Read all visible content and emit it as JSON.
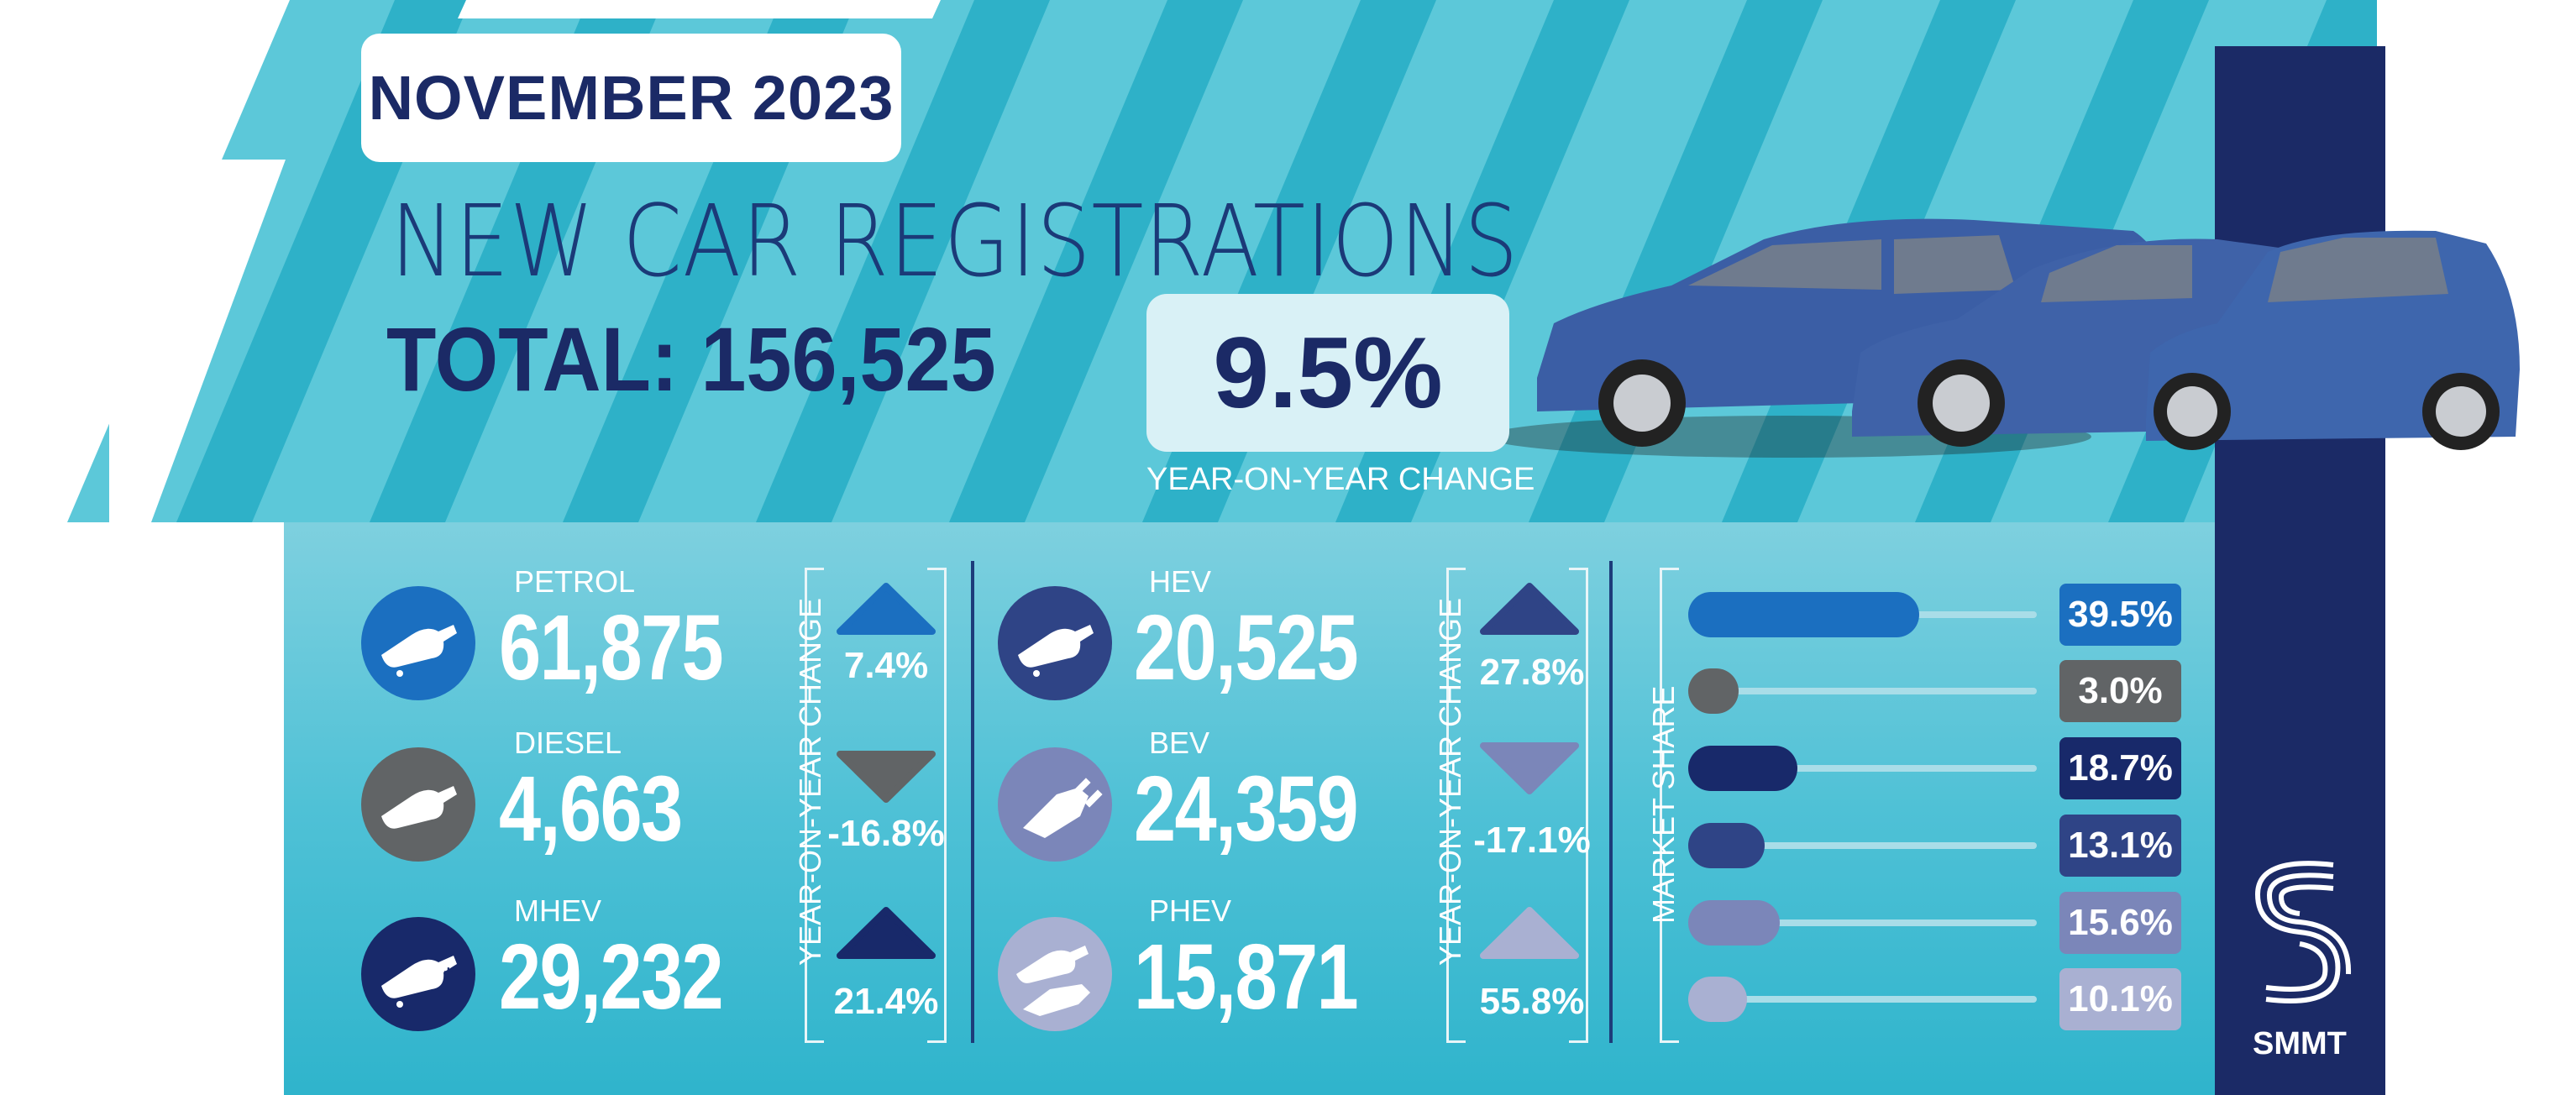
{
  "header": {
    "date": "NOVEMBER 2023",
    "title": "NEW CAR REGISTRATIONS",
    "total_label": "TOTAL: 156,525",
    "yoy_value": "9.5%",
    "yoy_caption": "YEAR-ON-YEAR CHANGE"
  },
  "colors": {
    "stripe_light": "#5cc8d9",
    "stripe_dark": "#2cb2c9",
    "navy": "#1b2a66",
    "side_bar": "#1b2a66",
    "petrol": "#1b6fc0",
    "diesel": "#616466",
    "mhev": "#18296a",
    "hev": "#2f4486",
    "bev": "#7b86b9",
    "phev": "#a9b0d2"
  },
  "fuels_left": [
    {
      "label": "PETROL",
      "value": "61,875",
      "change": "7.4%",
      "direction": "up",
      "icon": "fuel-pump-nozzle-icon"
    },
    {
      "label": "DIESEL",
      "value": "4,663",
      "change": "-16.8%",
      "direction": "down",
      "icon": "fuel-pump-nozzle-icon"
    },
    {
      "label": "MHEV",
      "value": "29,232",
      "change": "21.4%",
      "direction": "up",
      "icon": "fuel-pump-nozzle-icon"
    }
  ],
  "fuels_right": [
    {
      "label": "HEV",
      "value": "20,525",
      "change": "27.8%",
      "direction": "up",
      "icon": "fuel-pump-nozzle-icon"
    },
    {
      "label": "BEV",
      "value": "24,359",
      "change": "-17.1%",
      "direction": "down",
      "icon": "charging-plug-icon"
    },
    {
      "label": "PHEV",
      "value": "15,871",
      "change": "55.8%",
      "direction": "up",
      "icon": "plug-and-nozzle-icon"
    }
  ],
  "yoy_vertical_label": "YEAR-ON-YEAR CHANGE",
  "market_share_label": "MARKET SHARE",
  "chart_data": {
    "type": "bar",
    "categories": [
      "PETROL",
      "DIESEL",
      "MHEV",
      "HEV",
      "BEV",
      "PHEV"
    ],
    "values": [
      39.5,
      3.0,
      18.7,
      13.1,
      15.6,
      10.1
    ],
    "value_labels": [
      "39.5%",
      "3.0%",
      "18.7%",
      "13.1%",
      "15.6%",
      "10.1%"
    ],
    "title": "MARKET SHARE",
    "xlabel": "",
    "ylabel": "",
    "xlim": [
      0,
      100
    ],
    "grid": false,
    "legend": "none"
  },
  "brand": {
    "name": "SMMT",
    "icon": "smmt-logo-icon"
  }
}
